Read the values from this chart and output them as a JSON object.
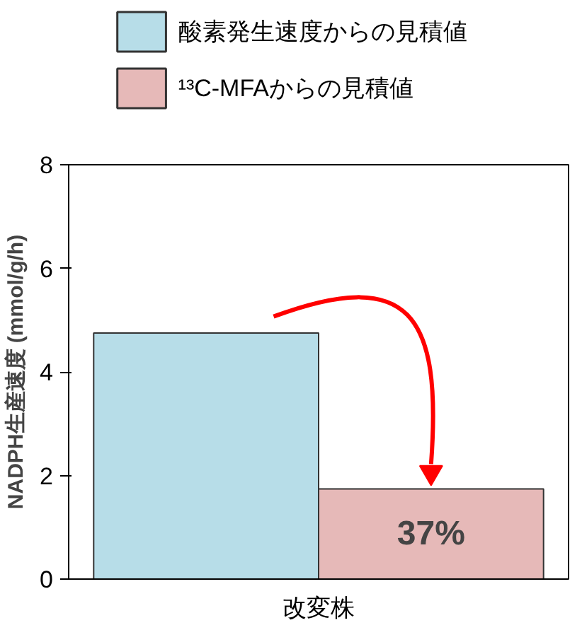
{
  "chart_data": {
    "type": "bar",
    "ylabel": "NADPH生産速度 (mmol/g/h)",
    "categories": [
      "改変株"
    ],
    "series": [
      {
        "name": "酸素発生速度からの見積値",
        "color": "#b7dde8",
        "values": [
          4.75
        ]
      },
      {
        "name": "¹³C-MFAからの見積値",
        "color": "#e6b9b8",
        "values": [
          1.74
        ]
      }
    ],
    "ylim": [
      0,
      8
    ],
    "yticks": [
      0,
      2,
      4,
      6,
      8
    ],
    "grid": false,
    "legend": "top",
    "annotations": [
      "37%"
    ]
  }
}
